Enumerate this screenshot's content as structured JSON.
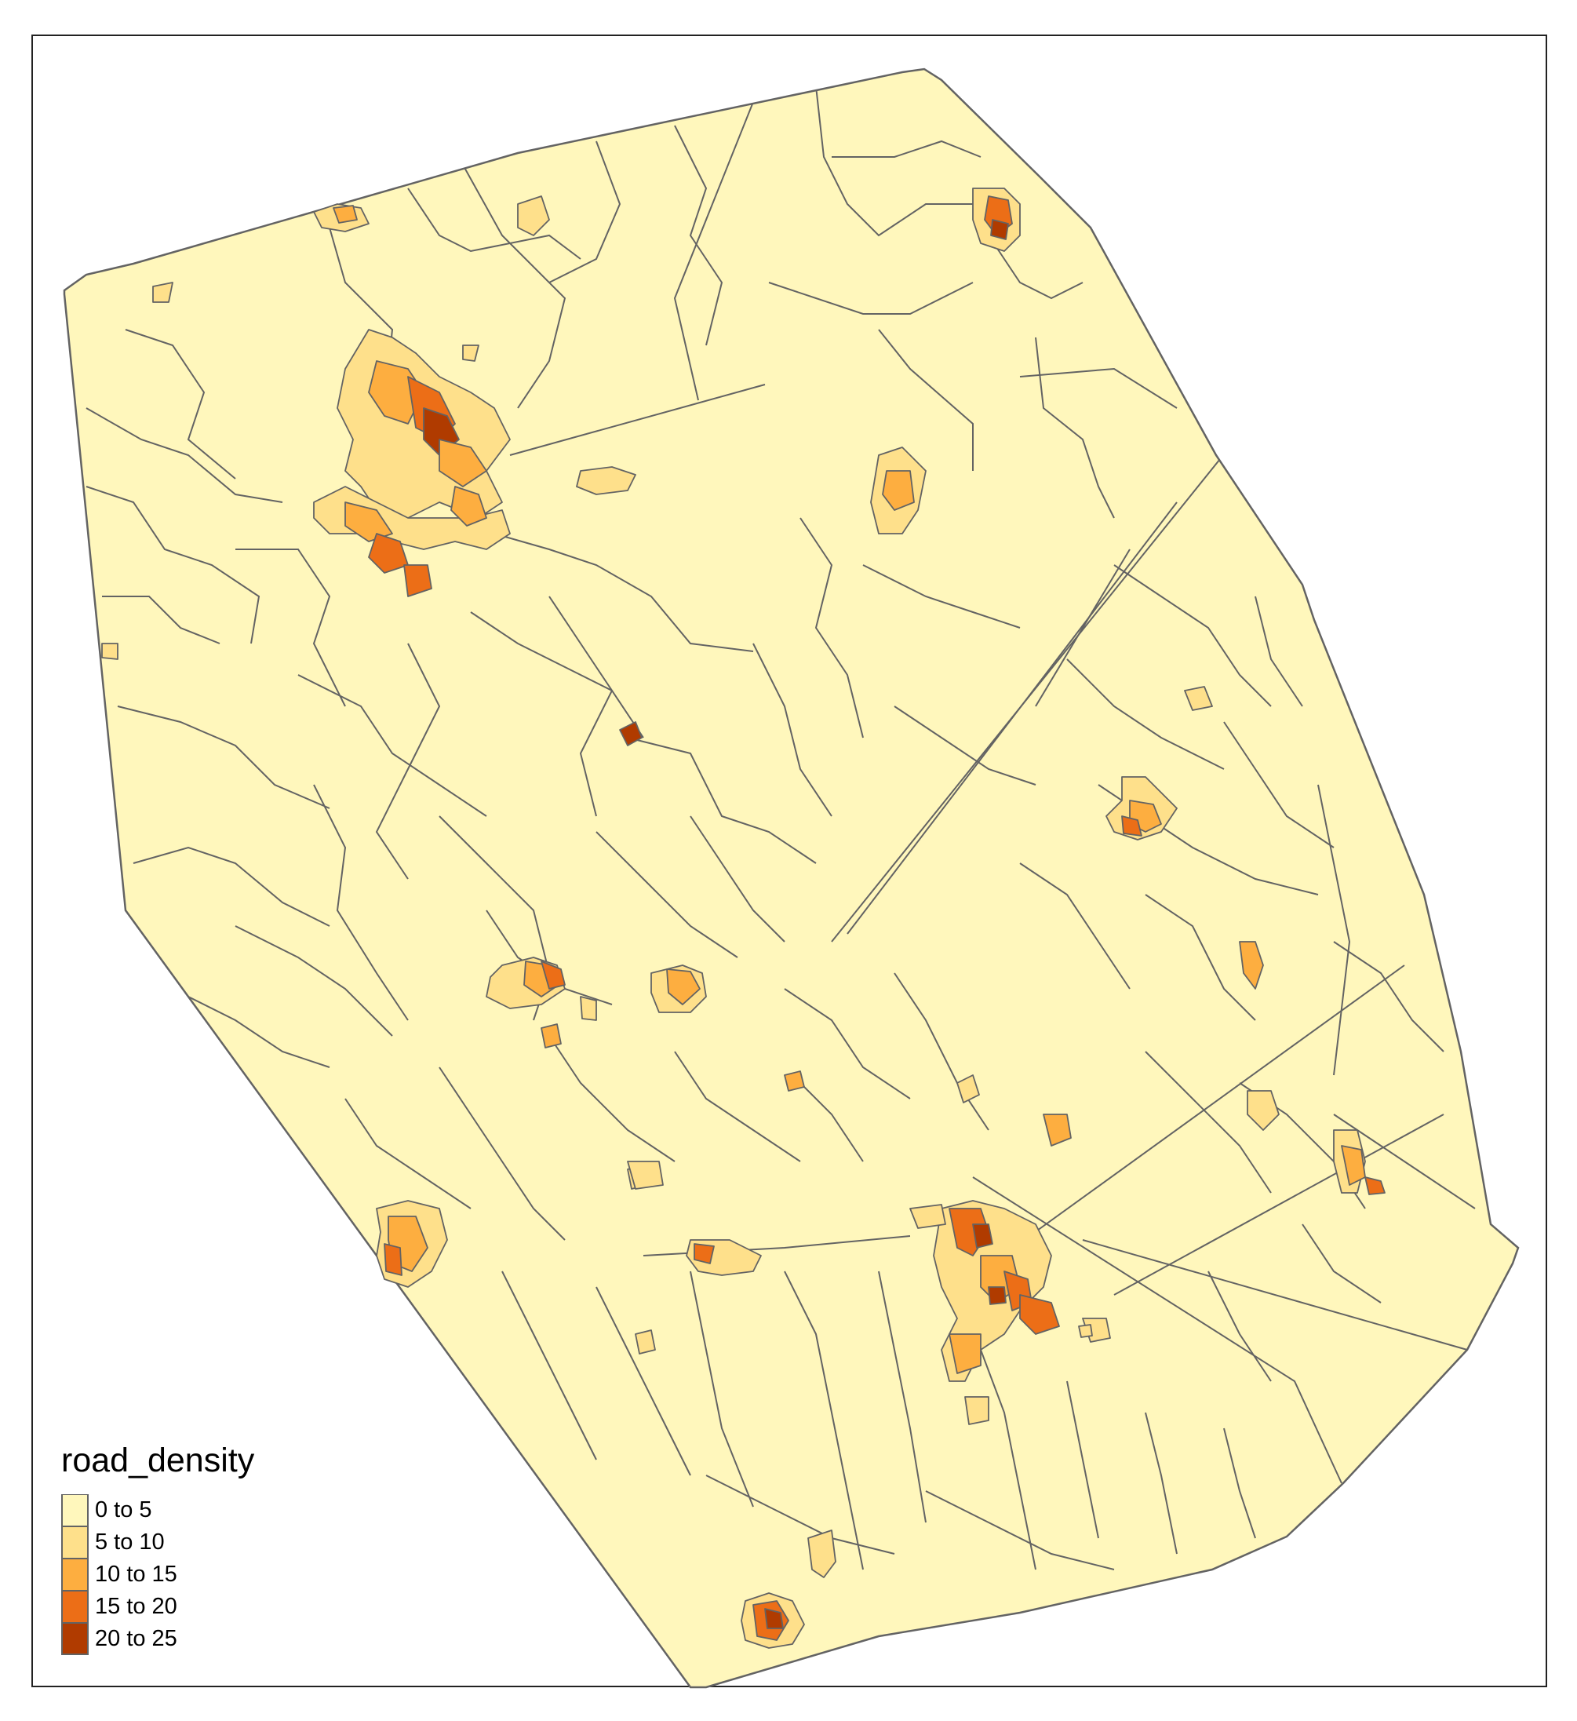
{
  "legend": {
    "title": "road_density",
    "classes": [
      {
        "label": "0 to 5",
        "color": "#FFF7BC"
      },
      {
        "label": "5 to 10",
        "color": "#FEE08B"
      },
      {
        "label": "10 to 15",
        "color": "#FDAE40"
      },
      {
        "label": "15 to 20",
        "color": "#EC6E17"
      },
      {
        "label": "20 to 25",
        "color": "#B03B00"
      }
    ]
  },
  "colors": {
    "boundary": "#636363",
    "frame": "#222222",
    "background": "#FFFFFF"
  }
}
